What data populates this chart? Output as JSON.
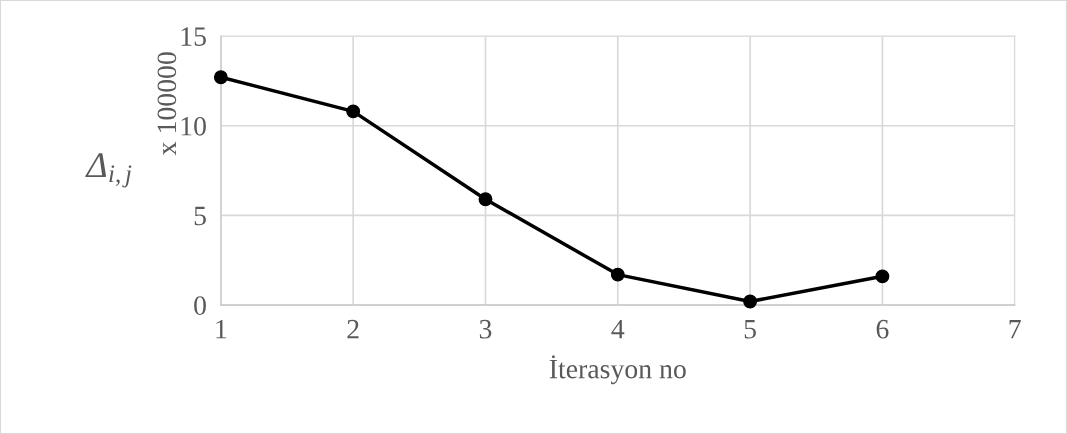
{
  "chart_data": {
    "type": "line",
    "xlabel": "İterasyon no",
    "ylabel": "Δ$_{i,j}$",
    "annotations": [
      "x 100000"
    ],
    "x": [
      1,
      2,
      3,
      4,
      5,
      6
    ],
    "series": [
      {
        "color": "#000000",
        "values": [
          12.7,
          10.8,
          5.9,
          1.7,
          0.2,
          1.6
        ]
      }
    ],
    "xlim": [
      1,
      7
    ],
    "xticks": [
      1,
      2,
      3,
      4,
      5,
      6,
      7
    ],
    "ylim": [
      0,
      15
    ],
    "yticks": [
      0,
      5,
      10,
      15
    ],
    "grid": true,
    "marker": "circle",
    "line_style": "solid"
  }
}
